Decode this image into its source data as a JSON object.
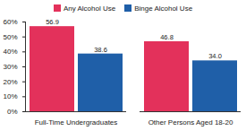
{
  "chart_data": {
    "type": "bar",
    "categories": [
      "Full-Time Undergraduates",
      "Other Persons Aged 18-20"
    ],
    "series": [
      {
        "name": "Any Alcohol Use",
        "color": "#e3315b",
        "values": [
          56.9,
          46.8
        ],
        "value_labels": [
          "56.9",
          "46.8"
        ]
      },
      {
        "name": "Binge Alcohol Use",
        "color": "#1f5fa8",
        "values": [
          38.6,
          34.0
        ],
        "value_labels": [
          "38.6",
          "34.0"
        ]
      }
    ],
    "ylim": [
      0,
      60
    ],
    "yticks": [
      {
        "value": 0,
        "label": "0%"
      },
      {
        "value": 10,
        "label": "10%"
      },
      {
        "value": 20,
        "label": "20%"
      },
      {
        "value": 30,
        "label": "30%"
      },
      {
        "value": 40,
        "label": "40%"
      },
      {
        "value": 50,
        "label": "50%"
      },
      {
        "value": 60,
        "label": "60%"
      }
    ],
    "grid": false,
    "legend": "top",
    "data_labels": true
  }
}
